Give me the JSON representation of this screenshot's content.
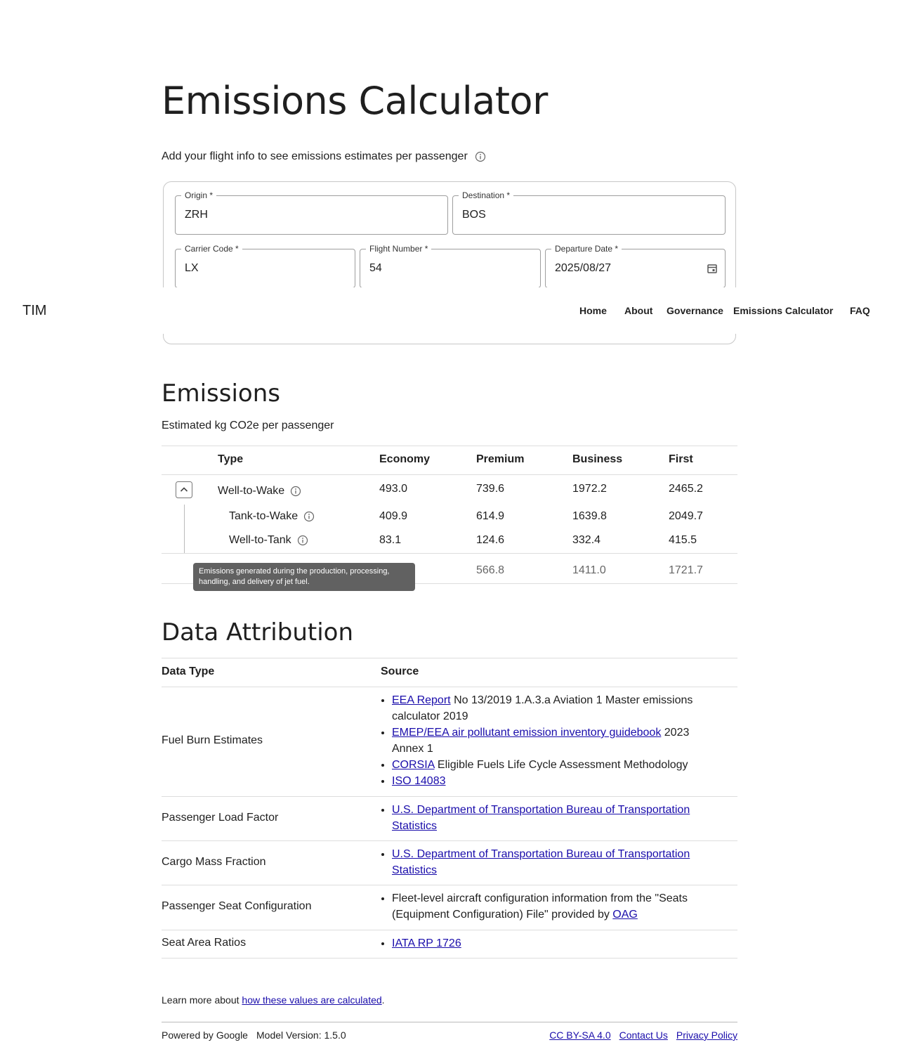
{
  "nav": {
    "brand": "TIM",
    "links": [
      "Home",
      "About",
      "Governance",
      "Emissions Calculator",
      "FAQ"
    ]
  },
  "header": {
    "title": "Emissions Calculator",
    "subtitle": "Add your flight info to see emissions estimates per passenger"
  },
  "form": {
    "fields": [
      {
        "label": "Origin *",
        "value": "ZRH"
      },
      {
        "label": "Destination *",
        "value": "BOS"
      },
      {
        "label": "Carrier Code *",
        "value": "LX"
      },
      {
        "label": "Flight Number *",
        "value": "54"
      },
      {
        "label": "Departure Date *",
        "value": "2025/08/27"
      }
    ]
  },
  "emissions": {
    "title": "Emissions",
    "subtitle": "Estimated kg CO2e per passenger",
    "columns": [
      "Type",
      "Economy",
      "Premium",
      "Business",
      "First"
    ],
    "rows": [
      {
        "type": "Well-to-Wake",
        "economy": "493.0",
        "premium": "739.6",
        "business": "1972.2",
        "first": "2465.2"
      },
      {
        "type": "Tank-to-Wake",
        "economy": "409.9",
        "premium": "614.9",
        "business": "1639.8",
        "first": "2049.7"
      },
      {
        "type": "Well-to-Tank",
        "economy": "83.1",
        "premium": "124.6",
        "business": "332.4",
        "first": "415.5"
      },
      {
        "premium": "566.8",
        "business": "1411.0",
        "first": "1721.7"
      }
    ],
    "tooltip": "Emissions generated during the production, processing, handling, and delivery of jet fuel."
  },
  "attribution": {
    "title": "Data Attribution",
    "columns": [
      "Data Type",
      "Source"
    ],
    "rows": [
      {
        "type": "Fuel Burn Estimates",
        "sources": [
          [
            {
              "link": "EEA Report"
            },
            {
              "text": "No 13/2019 1.A.3.a Aviation 1 Master emissions calculator 2019"
            }
          ],
          [
            {
              "link": "EMEP/EEA air pollutant emission inventory guidebook"
            },
            {
              "text": "2023 Annex 1"
            }
          ],
          [
            {
              "link": "CORSIA"
            },
            {
              "text": "Eligible Fuels Life Cycle Assessment Methodology"
            }
          ],
          [
            {
              "link": "ISO 14083"
            }
          ]
        ]
      },
      {
        "type": "Passenger Load Factor",
        "sources": [
          [
            {
              "link": "U.S. Department of Transportation Bureau of Transportation Statistics"
            }
          ]
        ]
      },
      {
        "type": "Cargo Mass Fraction",
        "sources": [
          [
            {
              "link": "U.S. Department of Transportation Bureau of Transportation Statistics"
            }
          ]
        ]
      },
      {
        "type": "Passenger Seat Configuration",
        "sources": [
          [
            {
              "text": "Fleet-level aircraft configuration information from the \"Seats (Equipment Configuration) File\" provided by"
            },
            {
              "link": "OAG"
            }
          ]
        ]
      },
      {
        "type": "Seat Area Ratios",
        "sources": [
          [
            {
              "link": "IATA RP 1726"
            }
          ]
        ]
      }
    ]
  },
  "footer": {
    "learn": {
      "text": "Learn more about",
      "link": "how these values are calculated",
      "end": "."
    },
    "powered": "Powered by Google",
    "version": "Model Version: 1.5.0",
    "links": [
      "CC BY-SA 4.0",
      "Contact Us",
      "Privacy Policy"
    ]
  }
}
